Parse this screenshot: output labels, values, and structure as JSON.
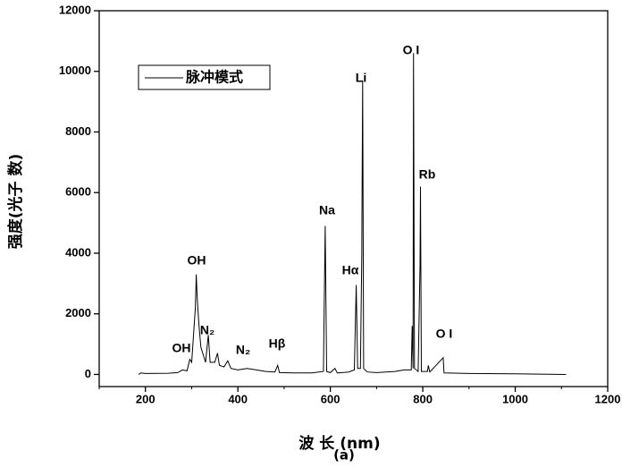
{
  "chart_data": {
    "type": "line",
    "x_label": "波 长 (nm)",
    "y_label": "强度(光子 数)",
    "caption": "(a)",
    "xlim": [
      100,
      1200
    ],
    "xticks": [
      200,
      400,
      600,
      800,
      1000,
      1200
    ],
    "ylim": [
      -400,
      12000
    ],
    "yticks": [
      0,
      2000,
      4000,
      6000,
      8000,
      10000,
      12000
    ],
    "legend_position": "upper left",
    "annotations": [
      "OH",
      "OH",
      "N₂",
      "N₂",
      "Hβ",
      "Na",
      "Hα",
      "Li",
      "O I",
      "Rb",
      "O I"
    ],
    "series": [
      {
        "name": "脉冲模式",
        "color": "#000000",
        "x": [
          185,
          190,
          200,
          250,
          270,
          280,
          290,
          296,
          300,
          305,
          308,
          310,
          312,
          316,
          320,
          326,
          330,
          336,
          340,
          350,
          356,
          360,
          370,
          378,
          385,
          400,
          420,
          440,
          460,
          480,
          486,
          490,
          520,
          560,
          585,
          589,
          592,
          600,
          610,
          615,
          640,
          652,
          656,
          659,
          665,
          668,
          670,
          672,
          680,
          700,
          740,
          760,
          775,
          777,
          779,
          780,
          782,
          790,
          794,
          795,
          797,
          810,
          812,
          815,
          844,
          846,
          900,
          1000,
          1110
        ],
        "values": [
          0,
          50,
          30,
          40,
          60,
          150,
          120,
          500,
          400,
          1500,
          2200,
          3300,
          2500,
          1600,
          900,
          600,
          400,
          1300,
          400,
          400,
          700,
          300,
          250,
          450,
          200,
          150,
          200,
          150,
          100,
          80,
          300,
          60,
          50,
          50,
          100,
          4900,
          100,
          60,
          200,
          50,
          80,
          150,
          2950,
          200,
          200,
          3900,
          9700,
          200,
          80,
          60,
          100,
          150,
          150,
          1600,
          200,
          10600,
          200,
          100,
          3600,
          6200,
          100,
          100,
          300,
          80,
          550,
          50,
          30,
          20,
          0
        ]
      }
    ]
  }
}
